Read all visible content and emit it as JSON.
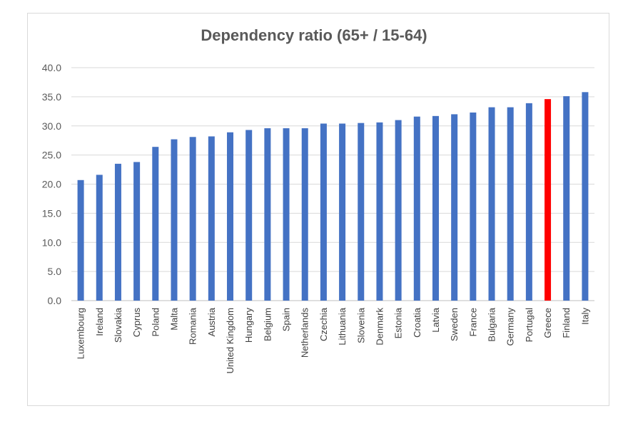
{
  "chart_data": {
    "type": "bar",
    "title": "Dependency ratio (65+ / 15-64)",
    "xlabel": "",
    "ylabel": "",
    "ylim": [
      0,
      40
    ],
    "yticks": [
      "0.0",
      "5.0",
      "10.0",
      "15.0",
      "20.0",
      "25.0",
      "30.0",
      "35.0",
      "40.0"
    ],
    "grid": true,
    "legend": "none",
    "categories": [
      "Luxembourg",
      "Ireland",
      "Slovakia",
      "Cyprus",
      "Poland",
      "Malta",
      "Romania",
      "Austria",
      "United Kingdom",
      "Hungary",
      "Belgium",
      "Spain",
      "Netherlands",
      "Czechia",
      "Lithuania",
      "Slovenia",
      "Denmark",
      "Estonia",
      "Croatia",
      "Latvia",
      "Sweden",
      "France",
      "Bulgaria",
      "Germany",
      "Portugal",
      "Greece",
      "Finland",
      "Italy"
    ],
    "values": [
      20.7,
      21.6,
      23.5,
      23.8,
      26.4,
      27.7,
      28.1,
      28.2,
      28.9,
      29.3,
      29.6,
      29.6,
      29.6,
      30.4,
      30.4,
      30.5,
      30.6,
      31.0,
      31.6,
      31.7,
      32.0,
      32.3,
      33.2,
      33.2,
      33.9,
      34.6,
      35.1,
      35.8
    ],
    "colors": {
      "bar": "#4472c4",
      "highlight": "#ff0000",
      "grid": "#d9d9d9",
      "axis": "#bfbfbf"
    },
    "highlight_category": "Greece"
  }
}
